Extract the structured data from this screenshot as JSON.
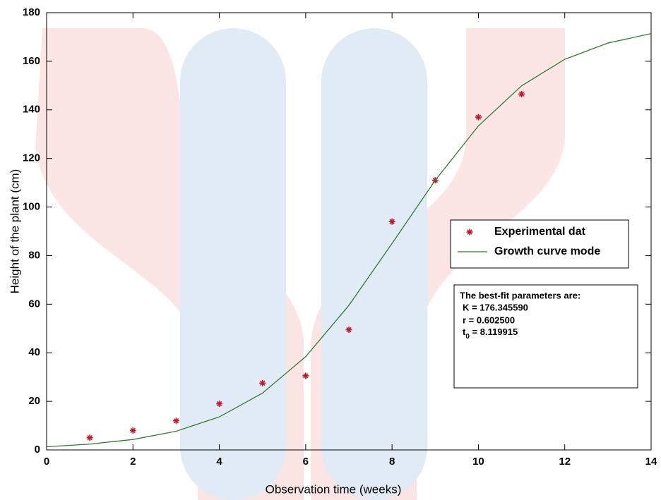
{
  "chart_data": {
    "type": "scatter-line",
    "x_label": "Observation time (weeks)",
    "y_label": "Height of the plant (cm)",
    "xlim": [
      0,
      14
    ],
    "xticks": [
      0,
      2,
      4,
      6,
      8,
      10,
      12,
      14
    ],
    "ylim": [
      0,
      180
    ],
    "yticks": [
      0,
      20,
      40,
      60,
      80,
      100,
      120,
      140,
      160,
      180
    ],
    "legend": "right",
    "series": [
      {
        "name": "Experimental dat",
        "kind": "points",
        "color": "#c0182a",
        "x": [
          1,
          2,
          3,
          4,
          5,
          6,
          7,
          8,
          9,
          10,
          11
        ],
        "values": [
          5,
          8,
          12,
          19,
          27.5,
          30.5,
          49.5,
          94,
          111,
          137,
          146.5
        ]
      },
      {
        "name": "Growth curve mode",
        "kind": "line",
        "color": "#2e7d32",
        "x": [
          0,
          1,
          2,
          3,
          4,
          5,
          6,
          7,
          8,
          9,
          10,
          11,
          12,
          13,
          14
        ],
        "values": [
          1.3,
          2.4,
          4.3,
          7.7,
          13.6,
          23.4,
          38.4,
          59.5,
          85,
          111,
          133.4,
          149.9,
          160.8,
          167.5,
          171.4
        ]
      }
    ],
    "annotation": {
      "title": "The best-fit parameters are:",
      "lines": [
        "K = 176.345590",
        "r = 0.602500"
      ],
      "t0": {
        "symbol": "t",
        "subscript": "0",
        "value": " = 8.119915"
      }
    }
  }
}
